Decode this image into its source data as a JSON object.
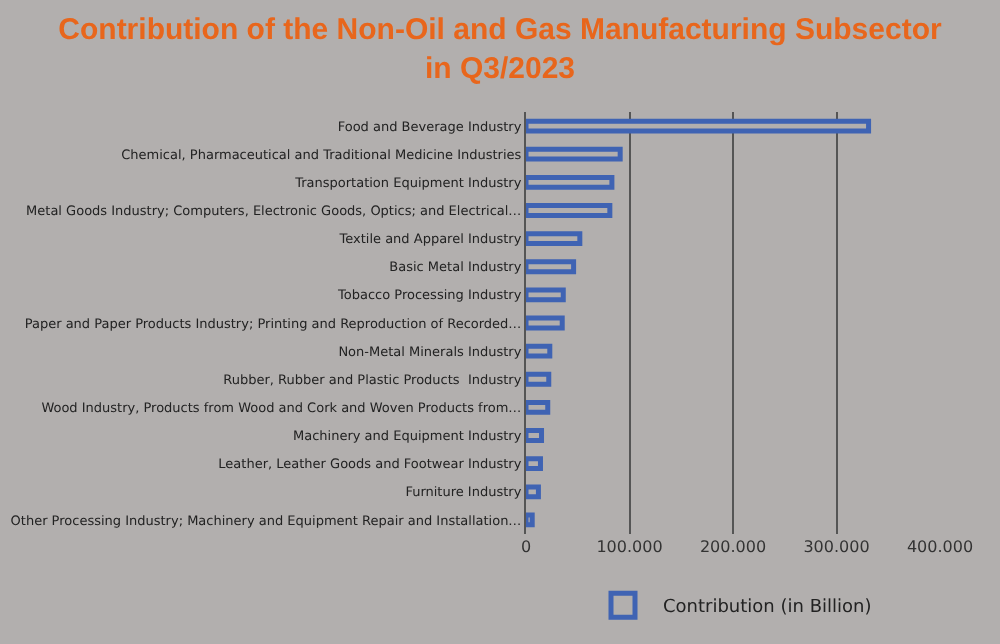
{
  "chart_data": {
    "type": "bar",
    "orientation": "horizontal",
    "title": "Contribution of the Non-Oil and Gas Manufacturing Subsector\nin Q3/2023",
    "categories": [
      "Food and Beverage Industry",
      "Chemical, Pharmaceutical and Traditional Medicine Industries",
      "Transportation Equipment Industry",
      "Metal Goods Industry; Computers, Electronic Goods, Optics; and Electrical…",
      "Textile and Apparel Industry",
      "Basic Metal Industry",
      "Tobacco Processing Industry",
      "Paper and Paper Products Industry; Printing and Reproduction of Recorded…",
      "Non-Metal Minerals Industry",
      "Rubber, Rubber and Plastic Products  Industry",
      "Wood Industry, Products from Wood and Cork and Woven Products from…",
      "Machinery and Equipment Industry",
      "Leather, Leather Goods and Footwear Industry",
      "Furniture Industry",
      "Other Processing Industry; Machinery and Equipment Repair and Installation…"
    ],
    "series": [
      {
        "name": "Contribution (in Billion)",
        "color": "#3f63b3",
        "values": [
          331000,
          91000,
          83000,
          81000,
          52000,
          46000,
          36000,
          35000,
          23000,
          22000,
          21000,
          15000,
          14000,
          12000,
          6000
        ]
      }
    ],
    "xlim": [
      0,
      400000
    ],
    "xticks": [
      0,
      {
        "value": 100000,
        "label": "100.000"
      },
      {
        "value": 200000,
        "label": "200.000"
      },
      {
        "value": 300000,
        "label": "300.000"
      },
      {
        "value": 400000,
        "label": "400.000"
      }
    ],
    "grid": "x",
    "legend": "bottom"
  }
}
